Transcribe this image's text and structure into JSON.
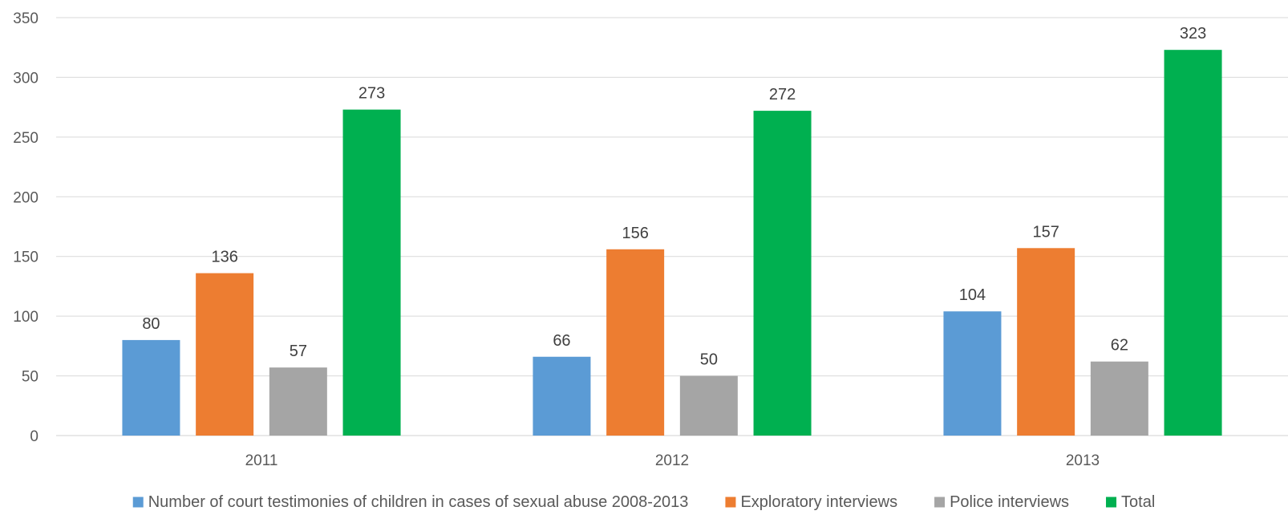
{
  "chart_data": {
    "type": "bar",
    "title": "",
    "xlabel": "",
    "ylabel": "",
    "categories": [
      "2011",
      "2012",
      "2013"
    ],
    "series": [
      {
        "name": "Number of court testimonies of children in cases of sexual abuse 2008-2013",
        "color": "#5b9bd5",
        "values": [
          80,
          66,
          104
        ]
      },
      {
        "name": "Exploratory interviews",
        "color": "#ed7d31",
        "values": [
          136,
          156,
          157
        ]
      },
      {
        "name": "Police interviews",
        "color": "#a5a5a5",
        "values": [
          57,
          50,
          62
        ]
      },
      {
        "name": "Total",
        "color": "#00b050",
        "values": [
          273,
          272,
          323
        ]
      }
    ],
    "ylim": [
      0,
      350
    ],
    "yticks": [
      0,
      50,
      100,
      150,
      200,
      250,
      300,
      350
    ],
    "grid": true,
    "data_labels": true,
    "legend_position": "bottom"
  }
}
